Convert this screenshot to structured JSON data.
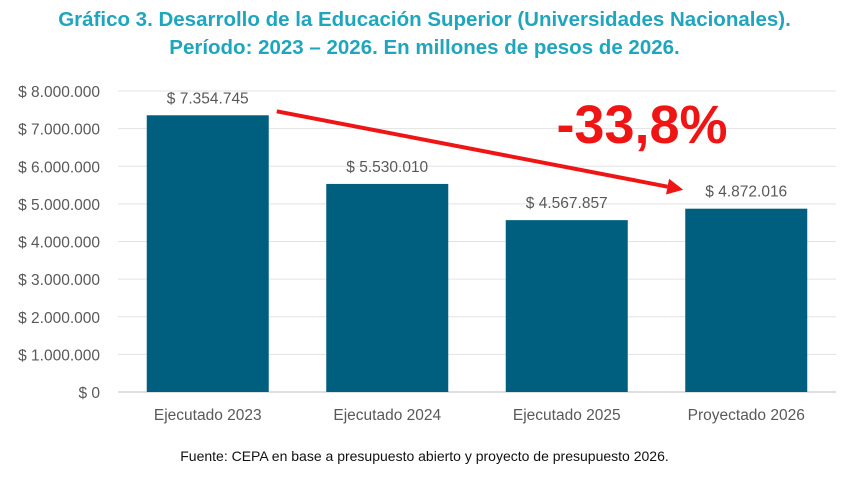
{
  "title": {
    "line1": "Gráfico 3. Desarrollo de la Educación Superior (Universidades Nacionales).",
    "line2": "Período: 2023 – 2026. En millones de pesos de 2026."
  },
  "source": "Fuente: CEPA en base a presupuesto abierto y proyecto de presupuesto 2026.",
  "colors": {
    "title": "#1FA6BE",
    "bar": "#005F7F",
    "arrow": "#F01515",
    "axis_text": "#595959",
    "grid": "#E3E3E3"
  },
  "chart_data": {
    "type": "bar",
    "categories": [
      "Ejecutado 2023",
      "Ejecutado 2024",
      "Ejecutado 2025",
      "Proyectado 2026"
    ],
    "values": [
      7354745,
      5530010,
      4567857,
      4872016
    ],
    "value_labels": [
      "$ 7.354.745",
      "$ 5.530.010",
      "$ 4.567.857",
      "$ 4.872.016"
    ],
    "ylim": [
      0,
      8000000
    ],
    "y_ticks": [
      0,
      1000000,
      2000000,
      3000000,
      4000000,
      5000000,
      6000000,
      7000000,
      8000000
    ],
    "y_tick_labels": [
      "$ 0",
      "$ 1.000.000",
      "$ 2.000.000",
      "$ 3.000.000",
      "$ 4.000.000",
      "$ 5.000.000",
      "$ 6.000.000",
      "$ 7.000.000",
      "$ 8.000.000"
    ],
    "grid": true,
    "annotation": {
      "text": "-33,8%",
      "from_category": "Ejecutado 2023",
      "to_category": "Proyectado 2026"
    }
  }
}
